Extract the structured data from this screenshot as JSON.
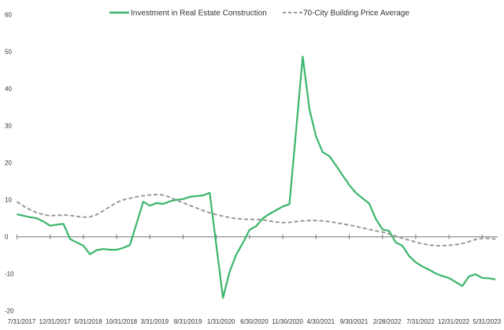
{
  "chart_data": {
    "type": "line",
    "title": "",
    "xlabel": "",
    "ylabel": "",
    "ylim": [
      -20,
      60
    ],
    "y_ticks": [
      "60",
      "50",
      "40",
      "30",
      "20",
      "10",
      "0",
      "-10",
      "-20"
    ],
    "x_tick_labels": [
      "7/31/2017",
      "12/31/2017",
      "5/31/2018",
      "10/31/2018",
      "3/31/2019",
      "8/31/2019",
      "1/31/2020",
      "6/30/2020",
      "11/30/2020",
      "4/30/2021",
      "9/30/2021",
      "2/28/2022",
      "7/31/2022",
      "12/31/2022",
      "5/31/2023"
    ],
    "grid": false,
    "legend_position": "top-center",
    "x": [
      "2017-07",
      "2017-08",
      "2017-09",
      "2017-10",
      "2017-11",
      "2017-12",
      "2018-01",
      "2018-02",
      "2018-03",
      "2018-04",
      "2018-05",
      "2018-06",
      "2018-07",
      "2018-08",
      "2018-09",
      "2018-10",
      "2018-11",
      "2018-12",
      "2019-01",
      "2019-02",
      "2019-03",
      "2019-04",
      "2019-05",
      "2019-06",
      "2019-07",
      "2019-08",
      "2019-09",
      "2019-10",
      "2019-11",
      "2019-12",
      "2020-01",
      "2020-02",
      "2020-03",
      "2020-04",
      "2020-05",
      "2020-06",
      "2020-07",
      "2020-08",
      "2020-09",
      "2020-10",
      "2020-11",
      "2020-12",
      "2021-01",
      "2021-02",
      "2021-03",
      "2021-04",
      "2021-05",
      "2021-06",
      "2021-07",
      "2021-08",
      "2021-09",
      "2021-10",
      "2021-11",
      "2021-12",
      "2022-01",
      "2022-02",
      "2022-03",
      "2022-04",
      "2022-05",
      "2022-06",
      "2022-07",
      "2022-08",
      "2022-09",
      "2022-10",
      "2022-11",
      "2022-12",
      "2023-01",
      "2023-02",
      "2023-03",
      "2023-04",
      "2023-05",
      "2023-06",
      "2023-07"
    ],
    "series": [
      {
        "name": "Investment in Real Estate Construction",
        "color": "#3bb56b",
        "style": "solid",
        "values": [
          6.1,
          5.7,
          5.3,
          5.0,
          4.1,
          3.0,
          3.3,
          3.5,
          -0.6,
          -1.5,
          -2.4,
          -4.7,
          -3.6,
          -3.3,
          -3.5,
          -3.5,
          -3.0,
          -2.2,
          3.6,
          9.5,
          8.4,
          9.1,
          8.9,
          9.6,
          10.0,
          10.2,
          10.8,
          11.0,
          11.2,
          11.9,
          -2.3,
          -16.5,
          -9.4,
          -4.8,
          -1.6,
          1.9,
          2.9,
          5.0,
          6.2,
          7.2,
          8.2,
          8.8,
          28.7,
          48.7,
          34.5,
          27.1,
          22.9,
          21.8,
          19.3,
          16.6,
          14.0,
          11.9,
          10.4,
          9.0,
          4.8,
          2.0,
          1.6,
          -1.5,
          -2.4,
          -5.2,
          -6.9,
          -8.0,
          -8.9,
          -9.9,
          -10.6,
          -11.1,
          -12.2,
          -13.3,
          -10.7,
          -10.1,
          -11.1,
          -11.2,
          -11.5
        ]
      },
      {
        "name": "70-City Building Price Average",
        "color": "#999999",
        "style": "dashed",
        "values": [
          9.5,
          8.3,
          7.3,
          6.5,
          6.0,
          5.7,
          5.8,
          5.9,
          5.8,
          5.5,
          5.3,
          5.4,
          6.0,
          7.0,
          8.2,
          9.3,
          10.0,
          10.4,
          10.8,
          11.1,
          11.3,
          11.4,
          11.3,
          10.7,
          9.9,
          9.2,
          8.5,
          7.8,
          7.1,
          6.5,
          6.0,
          5.6,
          5.2,
          4.9,
          4.8,
          4.7,
          4.7,
          4.6,
          4.3,
          4.0,
          3.8,
          3.9,
          4.1,
          4.3,
          4.4,
          4.4,
          4.3,
          4.1,
          3.8,
          3.5,
          3.2,
          2.8,
          2.4,
          2.0,
          1.6,
          1.3,
          0.8,
          0.2,
          -0.4,
          -0.9,
          -1.4,
          -1.9,
          -2.2,
          -2.4,
          -2.4,
          -2.3,
          -2.1,
          -1.8,
          -1.3,
          -0.7,
          -0.4,
          -0.4,
          -0.6
        ]
      }
    ]
  }
}
